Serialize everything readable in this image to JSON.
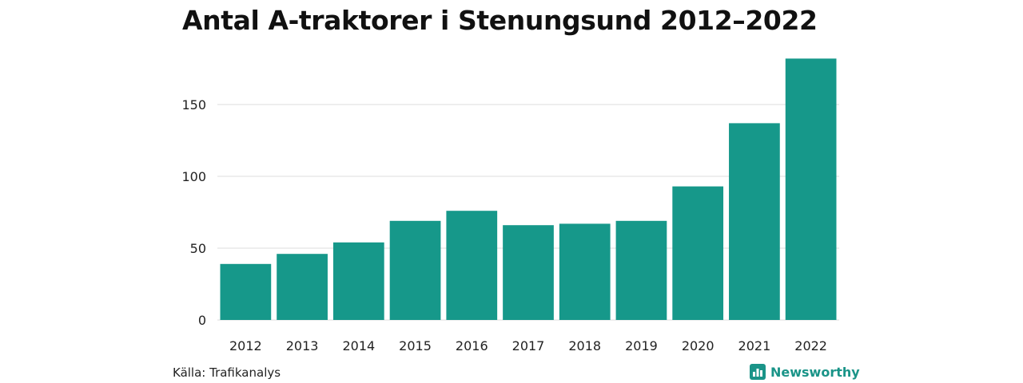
{
  "header": {
    "title": "Antal A-traktorer i Stenungsund 2012–2022"
  },
  "footer": {
    "source": "Källa: Trafikanalys",
    "brand": "Newsworthy",
    "brand_icon": "bar-chart-icon"
  },
  "colors": {
    "bar": "#16988a",
    "grid": "#dddddd",
    "brand": "#1a9488"
  },
  "chart_data": {
    "type": "bar",
    "title": "Antal A-traktorer i Stenungsund 2012–2022",
    "xlabel": "",
    "ylabel": "",
    "categories": [
      "2012",
      "2013",
      "2014",
      "2015",
      "2016",
      "2017",
      "2018",
      "2019",
      "2020",
      "2021",
      "2022"
    ],
    "values": [
      39,
      46,
      54,
      69,
      76,
      66,
      67,
      69,
      93,
      137,
      182
    ],
    "ylim": [
      0,
      185
    ],
    "yticks": [
      0,
      50,
      100,
      150
    ],
    "grid": true,
    "legend": "none"
  }
}
